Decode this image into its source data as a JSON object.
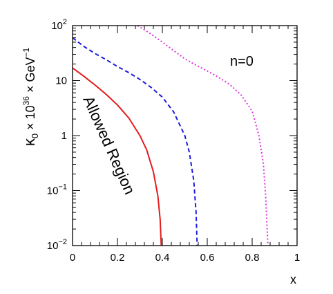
{
  "chart_data": {
    "type": "line",
    "title": "",
    "xlabel": "x",
    "ylabel": "κ₀ × 10³⁶ × GeV⁻¹",
    "ylabel_parts": {
      "kappa": "κ",
      "kappa_sub": "0",
      "times1": " × 10",
      "exp36": "36",
      "times2": " × GeV",
      "exp_minus1": "−1"
    },
    "xlim": [
      0,
      1
    ],
    "ylim": [
      0.01,
      100
    ],
    "yscale": "log",
    "grid": false,
    "x_ticks": [
      {
        "value": 0,
        "label": "0"
      },
      {
        "value": 0.2,
        "label": "0.2"
      },
      {
        "value": 0.4,
        "label": "0.4"
      },
      {
        "value": 0.6,
        "label": "0.6"
      },
      {
        "value": 0.8,
        "label": "0.8"
      },
      {
        "value": 1,
        "label": "1"
      }
    ],
    "y_ticks": [
      {
        "value": 0.01,
        "base": "10",
        "exp": "−2"
      },
      {
        "value": 0.1,
        "base": "10",
        "exp": "−1"
      },
      {
        "value": 1,
        "base": "1",
        "exp": ""
      },
      {
        "value": 10,
        "base": "10",
        "exp": ""
      },
      {
        "value": 100,
        "base": "10",
        "exp": "2"
      }
    ],
    "annotations": {
      "n_label": "n=0",
      "region_label": "Allowed Region"
    },
    "series": [
      {
        "style": "solid",
        "color": "#e31a1c",
        "points": [
          [
            0,
            17
          ],
          [
            0.05,
            12
          ],
          [
            0.1,
            8.3
          ],
          [
            0.15,
            5.6
          ],
          [
            0.2,
            3.6
          ],
          [
            0.25,
            2.1
          ],
          [
            0.3,
            1.0
          ],
          [
            0.33,
            0.55
          ],
          [
            0.36,
            0.22
          ],
          [
            0.38,
            0.08
          ],
          [
            0.39,
            0.03
          ],
          [
            0.395,
            0.01
          ]
        ]
      },
      {
        "style": "dashed",
        "color": "#1a1adf",
        "points": [
          [
            0,
            60
          ],
          [
            0.05,
            42
          ],
          [
            0.1,
            31
          ],
          [
            0.15,
            24
          ],
          [
            0.2,
            18
          ],
          [
            0.25,
            14
          ],
          [
            0.3,
            10.5
          ],
          [
            0.35,
            7.5
          ],
          [
            0.4,
            5.0
          ],
          [
            0.45,
            2.7
          ],
          [
            0.5,
            1.0
          ],
          [
            0.52,
            0.5
          ],
          [
            0.54,
            0.15
          ],
          [
            0.55,
            0.04
          ],
          [
            0.555,
            0.01
          ]
        ]
      },
      {
        "style": "dotted",
        "color": "#dd33dd",
        "points": [
          [
            0.29,
            100
          ],
          [
            0.35,
            70
          ],
          [
            0.4,
            50
          ],
          [
            0.45,
            35
          ],
          [
            0.5,
            25
          ],
          [
            0.55,
            19
          ],
          [
            0.6,
            15
          ],
          [
            0.65,
            11.5
          ],
          [
            0.7,
            8.5
          ],
          [
            0.75,
            5.5
          ],
          [
            0.8,
            2.8
          ],
          [
            0.83,
            1.0
          ],
          [
            0.85,
            0.3
          ],
          [
            0.86,
            0.08
          ],
          [
            0.87,
            0.01
          ]
        ]
      }
    ]
  }
}
